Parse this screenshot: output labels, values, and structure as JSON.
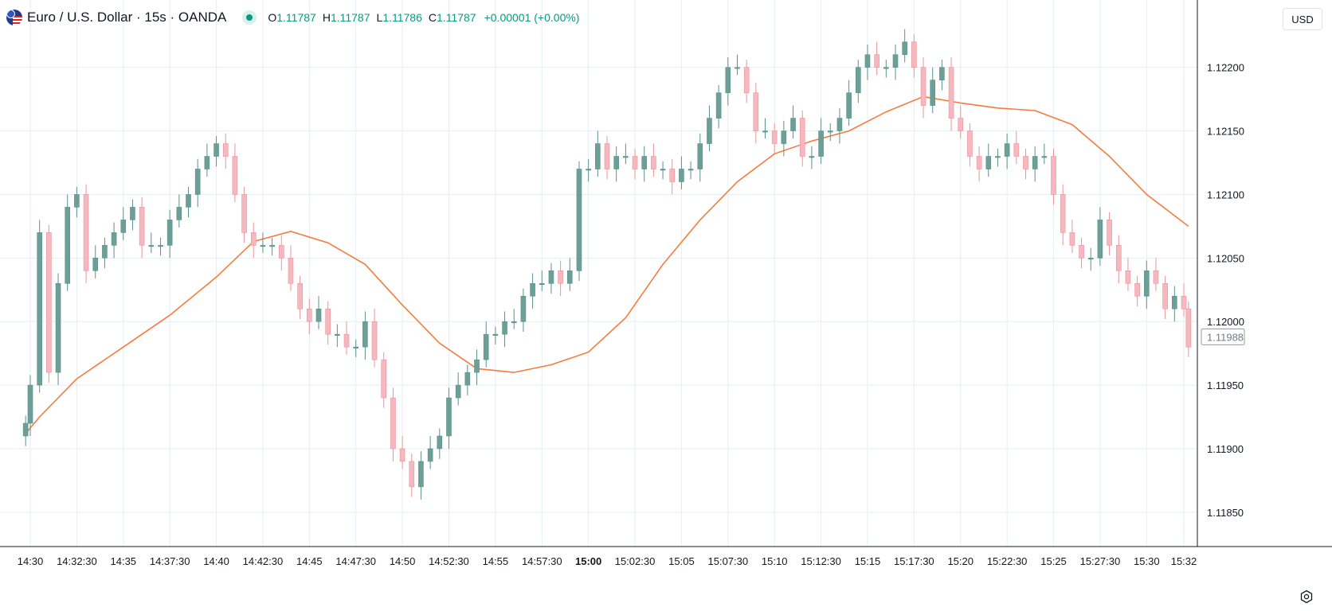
{
  "header": {
    "symbol": "Euro / U.S. Dollar · 15s · OANDA",
    "open_label": "O",
    "open": "1.11787",
    "high_label": "H",
    "high": "1.11787",
    "low_label": "L",
    "low": "1.11786",
    "close_label": "C",
    "close": "1.11787",
    "change": "+0.00001 (+0.00%)"
  },
  "currency_button": "USD",
  "colors": {
    "up": "#6b9f98",
    "down": "#f5b8bf",
    "ma": "#f47c3c",
    "grid": "#e6eef5",
    "text": "#131722",
    "accent": "#089981"
  },
  "icons": [
    "eurusd-flag-icon",
    "market-status-dot-icon",
    "settings-icon"
  ],
  "chart_data": {
    "type": "candlestick",
    "x_ticks": [
      "14:30",
      "14:32:30",
      "14:35",
      "14:37:30",
      "14:40",
      "14:42:30",
      "14:45",
      "14:47:30",
      "14:50",
      "14:52:30",
      "14:55",
      "14:57:30",
      "15:00",
      "15:02:30",
      "15:05",
      "15:07:30",
      "15:10",
      "15:12:30",
      "15:15",
      "15:17:30",
      "15:20",
      "15:22:30",
      "15:25",
      "15:27:30",
      "15:30",
      "15:32"
    ],
    "y_ticks": [
      "1.11850",
      "1.11900",
      "1.11950",
      "1.12000",
      "1.12050",
      "1.12100",
      "1.12150",
      "1.12200"
    ],
    "ylim": [
      1.11823,
      1.12253
    ],
    "last_price": "1.11988",
    "grid": true,
    "series": [
      {
        "type": "candlestick",
        "points": [
          {
            "t": "14:29:45",
            "close": 1.1192
          },
          {
            "t": "14:30:00",
            "close": 1.1195
          },
          {
            "t": "14:30:30",
            "close": 1.1207
          },
          {
            "t": "14:31:00",
            "close": 1.1196
          },
          {
            "t": "14:31:30",
            "close": 1.1203
          },
          {
            "t": "14:32:00",
            "close": 1.1209
          },
          {
            "t": "14:32:30",
            "close": 1.121
          },
          {
            "t": "14:33:00",
            "close": 1.1204
          },
          {
            "t": "14:33:30",
            "close": 1.1205
          },
          {
            "t": "14:34:00",
            "close": 1.1206
          },
          {
            "t": "14:34:30",
            "close": 1.1207
          },
          {
            "t": "14:35:00",
            "close": 1.1208
          },
          {
            "t": "14:35:30",
            "close": 1.1209
          },
          {
            "t": "14:36:00",
            "close": 1.1206
          },
          {
            "t": "14:36:30",
            "close": 1.1206
          },
          {
            "t": "14:37:00",
            "close": 1.1206
          },
          {
            "t": "14:37:30",
            "close": 1.1208
          },
          {
            "t": "14:38:00",
            "close": 1.1209
          },
          {
            "t": "14:38:30",
            "close": 1.121
          },
          {
            "t": "14:39:00",
            "close": 1.1212
          },
          {
            "t": "14:39:30",
            "close": 1.1213
          },
          {
            "t": "14:40:00",
            "close": 1.1214
          },
          {
            "t": "14:40:30",
            "close": 1.1213
          },
          {
            "t": "14:41:00",
            "close": 1.121
          },
          {
            "t": "14:41:30",
            "close": 1.1207
          },
          {
            "t": "14:42:00",
            "close": 1.1206
          },
          {
            "t": "14:42:30",
            "close": 1.1206
          },
          {
            "t": "14:43:00",
            "close": 1.1206
          },
          {
            "t": "14:43:30",
            "close": 1.1205
          },
          {
            "t": "14:44:00",
            "close": 1.1203
          },
          {
            "t": "14:44:30",
            "close": 1.1201
          },
          {
            "t": "14:45:00",
            "close": 1.12
          },
          {
            "t": "14:45:30",
            "close": 1.1201
          },
          {
            "t": "14:46:00",
            "close": 1.1199
          },
          {
            "t": "14:46:30",
            "close": 1.1199
          },
          {
            "t": "14:47:00",
            "close": 1.1198
          },
          {
            "t": "14:47:30",
            "close": 1.1198
          },
          {
            "t": "14:48:00",
            "close": 1.12
          },
          {
            "t": "14:48:30",
            "close": 1.1197
          },
          {
            "t": "14:49:00",
            "close": 1.1194
          },
          {
            "t": "14:49:30",
            "close": 1.119
          },
          {
            "t": "14:50:00",
            "close": 1.1189
          },
          {
            "t": "14:50:30",
            "close": 1.1187
          },
          {
            "t": "14:51:00",
            "close": 1.1189
          },
          {
            "t": "14:51:30",
            "close": 1.119
          },
          {
            "t": "14:52:00",
            "close": 1.1191
          },
          {
            "t": "14:52:30",
            "close": 1.1194
          },
          {
            "t": "14:53:00",
            "close": 1.1195
          },
          {
            "t": "14:53:30",
            "close": 1.1196
          },
          {
            "t": "14:54:00",
            "close": 1.1197
          },
          {
            "t": "14:54:30",
            "close": 1.1199
          },
          {
            "t": "14:55:00",
            "close": 1.1199
          },
          {
            "t": "14:55:30",
            "close": 1.12
          },
          {
            "t": "14:56:00",
            "close": 1.12
          },
          {
            "t": "14:56:30",
            "close": 1.1202
          },
          {
            "t": "14:57:00",
            "close": 1.1203
          },
          {
            "t": "14:57:30",
            "close": 1.1203
          },
          {
            "t": "14:58:00",
            "close": 1.1204
          },
          {
            "t": "14:58:30",
            "close": 1.1203
          },
          {
            "t": "14:59:00",
            "close": 1.1204
          },
          {
            "t": "14:59:30",
            "close": 1.1212
          },
          {
            "t": "15:00:00",
            "close": 1.1212
          },
          {
            "t": "15:00:30",
            "close": 1.1214
          },
          {
            "t": "15:01:00",
            "close": 1.1212
          },
          {
            "t": "15:01:30",
            "close": 1.1213
          },
          {
            "t": "15:02:00",
            "close": 1.1213
          },
          {
            "t": "15:02:30",
            "close": 1.1212
          },
          {
            "t": "15:03:00",
            "close": 1.1213
          },
          {
            "t": "15:03:30",
            "close": 1.1212
          },
          {
            "t": "15:04:00",
            "close": 1.1212
          },
          {
            "t": "15:04:30",
            "close": 1.1211
          },
          {
            "t": "15:05:00",
            "close": 1.1212
          },
          {
            "t": "15:05:30",
            "close": 1.1212
          },
          {
            "t": "15:06:00",
            "close": 1.1214
          },
          {
            "t": "15:06:30",
            "close": 1.1216
          },
          {
            "t": "15:07:00",
            "close": 1.1218
          },
          {
            "t": "15:07:30",
            "close": 1.122
          },
          {
            "t": "15:08:00",
            "close": 1.122
          },
          {
            "t": "15:08:30",
            "close": 1.1218
          },
          {
            "t": "15:09:00",
            "close": 1.1215
          },
          {
            "t": "15:09:30",
            "close": 1.1215
          },
          {
            "t": "15:10:00",
            "close": 1.1214
          },
          {
            "t": "15:10:30",
            "close": 1.1215
          },
          {
            "t": "15:11:00",
            "close": 1.1216
          },
          {
            "t": "15:11:30",
            "close": 1.1213
          },
          {
            "t": "15:12:00",
            "close": 1.1213
          },
          {
            "t": "15:12:30",
            "close": 1.1215
          },
          {
            "t": "15:13:00",
            "close": 1.1215
          },
          {
            "t": "15:13:30",
            "close": 1.1216
          },
          {
            "t": "15:14:00",
            "close": 1.1218
          },
          {
            "t": "15:14:30",
            "close": 1.122
          },
          {
            "t": "15:15:00",
            "close": 1.1221
          },
          {
            "t": "15:15:30",
            "close": 1.122
          },
          {
            "t": "15:16:00",
            "close": 1.122
          },
          {
            "t": "15:16:30",
            "close": 1.1221
          },
          {
            "t": "15:17:00",
            "close": 1.1222
          },
          {
            "t": "15:17:30",
            "close": 1.122
          },
          {
            "t": "15:18:00",
            "close": 1.1217
          },
          {
            "t": "15:18:30",
            "close": 1.1219
          },
          {
            "t": "15:19:00",
            "close": 1.122
          },
          {
            "t": "15:19:30",
            "close": 1.1216
          },
          {
            "t": "15:20:00",
            "close": 1.1215
          },
          {
            "t": "15:20:30",
            "close": 1.1213
          },
          {
            "t": "15:21:00",
            "close": 1.1212
          },
          {
            "t": "15:21:30",
            "close": 1.1213
          },
          {
            "t": "15:22:00",
            "close": 1.1213
          },
          {
            "t": "15:22:30",
            "close": 1.1214
          },
          {
            "t": "15:23:00",
            "close": 1.1213
          },
          {
            "t": "15:23:30",
            "close": 1.1212
          },
          {
            "t": "15:24:00",
            "close": 1.1213
          },
          {
            "t": "15:24:30",
            "close": 1.1213
          },
          {
            "t": "15:25:00",
            "close": 1.121
          },
          {
            "t": "15:25:30",
            "close": 1.1207
          },
          {
            "t": "15:26:00",
            "close": 1.1206
          },
          {
            "t": "15:26:30",
            "close": 1.1205
          },
          {
            "t": "15:27:00",
            "close": 1.1205
          },
          {
            "t": "15:27:30",
            "close": 1.1208
          },
          {
            "t": "15:28:00",
            "close": 1.1206
          },
          {
            "t": "15:28:30",
            "close": 1.1204
          },
          {
            "t": "15:29:00",
            "close": 1.1203
          },
          {
            "t": "15:29:30",
            "close": 1.1202
          },
          {
            "t": "15:30:00",
            "close": 1.1204
          },
          {
            "t": "15:30:30",
            "close": 1.1203
          },
          {
            "t": "15:31:00",
            "close": 1.1201
          },
          {
            "t": "15:31:30",
            "close": 1.1202
          },
          {
            "t": "15:32:00",
            "close": 1.1201
          },
          {
            "t": "15:32:15",
            "close": 1.1198
          }
        ]
      },
      {
        "type": "line",
        "points": [
          {
            "t": "14:29:45",
            "v": 1.11912
          },
          {
            "t": "14:30:30",
            "v": 1.11925
          },
          {
            "t": "14:32:30",
            "v": 1.11955
          },
          {
            "t": "14:35:00",
            "v": 1.1198
          },
          {
            "t": "14:37:30",
            "v": 1.12005
          },
          {
            "t": "14:40:00",
            "v": 1.12035
          },
          {
            "t": "14:42:00",
            "v": 1.12063
          },
          {
            "t": "14:44:00",
            "v": 1.12071
          },
          {
            "t": "14:46:00",
            "v": 1.12062
          },
          {
            "t": "14:48:00",
            "v": 1.12045
          },
          {
            "t": "14:50:00",
            "v": 1.12013
          },
          {
            "t": "14:52:00",
            "v": 1.11983
          },
          {
            "t": "14:54:00",
            "v": 1.11963
          },
          {
            "t": "14:56:00",
            "v": 1.1196
          },
          {
            "t": "14:58:00",
            "v": 1.11966
          },
          {
            "t": "15:00:00",
            "v": 1.11976
          },
          {
            "t": "15:02:00",
            "v": 1.12003
          },
          {
            "t": "15:04:00",
            "v": 1.12045
          },
          {
            "t": "15:06:00",
            "v": 1.1208
          },
          {
            "t": "15:08:00",
            "v": 1.1211
          },
          {
            "t": "15:10:00",
            "v": 1.12132
          },
          {
            "t": "15:12:00",
            "v": 1.12142
          },
          {
            "t": "15:14:00",
            "v": 1.1215
          },
          {
            "t": "15:16:00",
            "v": 1.12165
          },
          {
            "t": "15:18:00",
            "v": 1.12177
          },
          {
            "t": "15:20:00",
            "v": 1.12172
          },
          {
            "t": "15:22:00",
            "v": 1.12168
          },
          {
            "t": "15:24:00",
            "v": 1.12166
          },
          {
            "t": "15:26:00",
            "v": 1.12155
          },
          {
            "t": "15:28:00",
            "v": 1.1213
          },
          {
            "t": "15:30:00",
            "v": 1.121
          },
          {
            "t": "15:32:15",
            "v": 1.12075
          }
        ]
      }
    ]
  }
}
